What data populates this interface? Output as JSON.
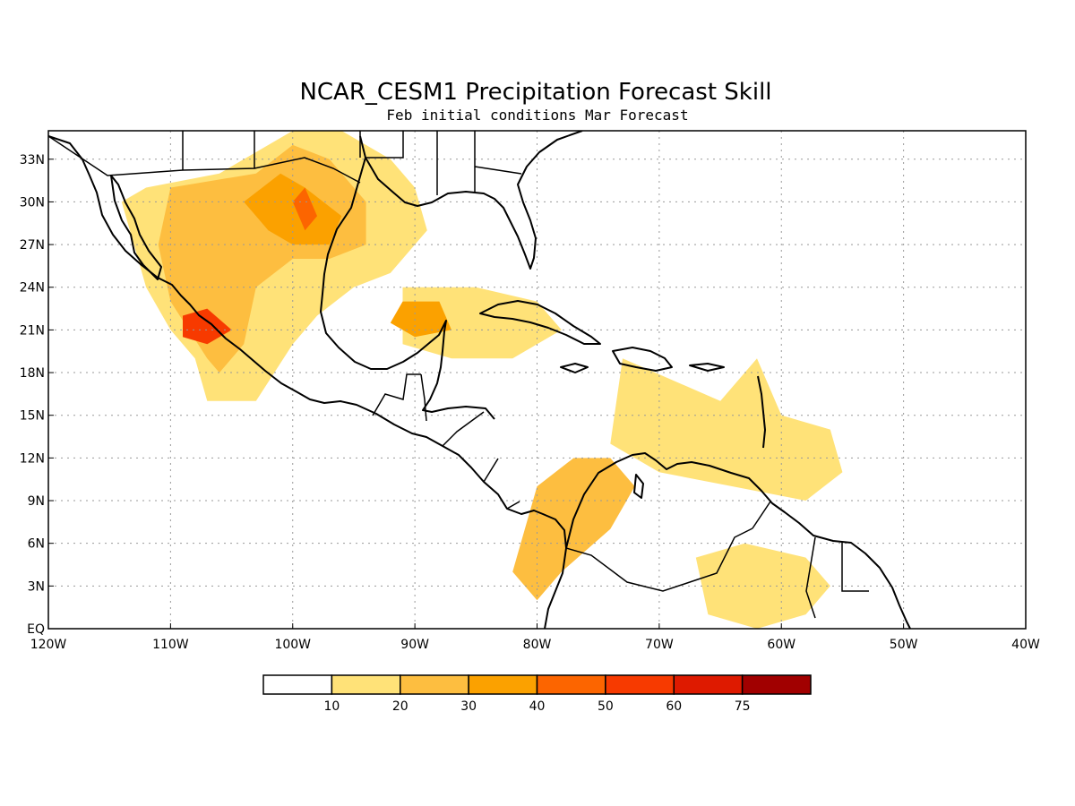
{
  "title": "NCAR_CESM1 Precipitation Forecast Skill",
  "subtitle": "Feb initial conditions  Mar Forecast",
  "map": {
    "lon_range": [
      -120,
      -40
    ],
    "lat_range": [
      0,
      35
    ],
    "x_ticks": [
      {
        "lon": -120,
        "label": "120W"
      },
      {
        "lon": -110,
        "label": "110W"
      },
      {
        "lon": -100,
        "label": "100W"
      },
      {
        "lon": -90,
        "label": "90W"
      },
      {
        "lon": -80,
        "label": "80W"
      },
      {
        "lon": -70,
        "label": "70W"
      },
      {
        "lon": -60,
        "label": "60W"
      },
      {
        "lon": -50,
        "label": "50W"
      },
      {
        "lon": -40,
        "label": "40W"
      }
    ],
    "y_ticks": [
      {
        "lat": 0,
        "label": "EQ"
      },
      {
        "lat": 3,
        "label": "3N"
      },
      {
        "lat": 6,
        "label": "6N"
      },
      {
        "lat": 9,
        "label": "9N"
      },
      {
        "lat": 12,
        "label": "12N"
      },
      {
        "lat": 15,
        "label": "15N"
      },
      {
        "lat": 18,
        "label": "18N"
      },
      {
        "lat": 21,
        "label": "21N"
      },
      {
        "lat": 24,
        "label": "24N"
      },
      {
        "lat": 27,
        "label": "27N"
      },
      {
        "lat": 30,
        "label": "30N"
      },
      {
        "lat": 33,
        "label": "33N"
      }
    ],
    "grid": true
  },
  "colorbar": {
    "bins": [
      {
        "color": "#ffffff"
      },
      {
        "color": "#ffe278"
      },
      {
        "color": "#fdbe40"
      },
      {
        "color": "#fba100"
      },
      {
        "color": "#fc6500"
      },
      {
        "color": "#f73a00"
      },
      {
        "color": "#de1a00"
      },
      {
        "color": "#a10000"
      }
    ],
    "labels": [
      "10",
      "20",
      "30",
      "40",
      "50",
      "60",
      "75"
    ]
  },
  "chart_data": {
    "type": "heatmap",
    "title": "NCAR_CESM1 Precipitation Forecast Skill",
    "subtitle": "Feb initial conditions  Mar Forecast",
    "x_range": [
      -120,
      -40
    ],
    "y_range": [
      0,
      35
    ],
    "levels": [
      10,
      20,
      30,
      40,
      50,
      60,
      75
    ],
    "regions": [
      {
        "level": 10,
        "polygon": [
          [
            -112,
            31
          ],
          [
            -106,
            32
          ],
          [
            -100,
            35
          ],
          [
            -96,
            35
          ],
          [
            -92,
            33
          ],
          [
            -90,
            31
          ],
          [
            -89,
            28
          ],
          [
            -92,
            25
          ],
          [
            -95,
            24
          ],
          [
            -98,
            22
          ],
          [
            -100,
            20
          ],
          [
            -103,
            16
          ],
          [
            -107,
            16
          ],
          [
            -108,
            19
          ],
          [
            -110,
            21
          ],
          [
            -112,
            24
          ],
          [
            -113,
            27
          ],
          [
            -114,
            30
          ]
        ]
      },
      {
        "level": 20,
        "polygon": [
          [
            -110,
            31
          ],
          [
            -103,
            32
          ],
          [
            -100,
            34
          ],
          [
            -97,
            33
          ],
          [
            -94,
            30
          ],
          [
            -94,
            27
          ],
          [
            -97,
            26
          ],
          [
            -100,
            26
          ],
          [
            -103,
            24
          ],
          [
            -104,
            20
          ],
          [
            -106,
            18
          ],
          [
            -107,
            19
          ],
          [
            -110,
            23
          ],
          [
            -111,
            27
          ]
        ]
      },
      {
        "level": 30,
        "polygon": [
          [
            -104,
            30
          ],
          [
            -101,
            32
          ],
          [
            -99,
            31
          ],
          [
            -96,
            29
          ],
          [
            -97,
            27
          ],
          [
            -100,
            27
          ],
          [
            -102,
            28
          ]
        ]
      },
      {
        "level": 40,
        "polygon": [
          [
            -100,
            30
          ],
          [
            -99,
            31
          ],
          [
            -98,
            29
          ],
          [
            -99,
            28
          ]
        ]
      },
      {
        "level": 50,
        "polygon": [
          [
            -109,
            22
          ],
          [
            -107,
            22.5
          ],
          [
            -105,
            21
          ],
          [
            -107,
            20
          ],
          [
            -109,
            20.5
          ]
        ]
      },
      {
        "level": 10,
        "polygon": [
          [
            -91,
            24
          ],
          [
            -85,
            24
          ],
          [
            -80,
            23
          ],
          [
            -78,
            21
          ],
          [
            -82,
            19
          ],
          [
            -87,
            19
          ],
          [
            -91,
            20
          ]
        ]
      },
      {
        "level": 30,
        "polygon": [
          [
            -91,
            23
          ],
          [
            -88,
            23
          ],
          [
            -87,
            21
          ],
          [
            -90,
            20.5
          ],
          [
            -92,
            21.5
          ]
        ]
      },
      {
        "level": 10,
        "polygon": [
          [
            -73,
            19
          ],
          [
            -65,
            16
          ],
          [
            -62,
            19
          ],
          [
            -60,
            15
          ],
          [
            -56,
            14
          ],
          [
            -55,
            11
          ],
          [
            -58,
            9
          ],
          [
            -64,
            10
          ],
          [
            -70,
            11
          ],
          [
            -74,
            13
          ]
        ]
      },
      {
        "level": 20,
        "polygon": [
          [
            -80,
            10
          ],
          [
            -77,
            12
          ],
          [
            -74,
            12
          ],
          [
            -72,
            10
          ],
          [
            -74,
            7
          ],
          [
            -78,
            4
          ],
          [
            -80,
            2
          ],
          [
            -82,
            4
          ]
        ]
      },
      {
        "level": 10,
        "polygon": [
          [
            -67,
            5
          ],
          [
            -63,
            6
          ],
          [
            -58,
            5
          ],
          [
            -56,
            3
          ],
          [
            -58,
            1
          ],
          [
            -62,
            0
          ],
          [
            -66,
            1
          ]
        ]
      }
    ]
  }
}
